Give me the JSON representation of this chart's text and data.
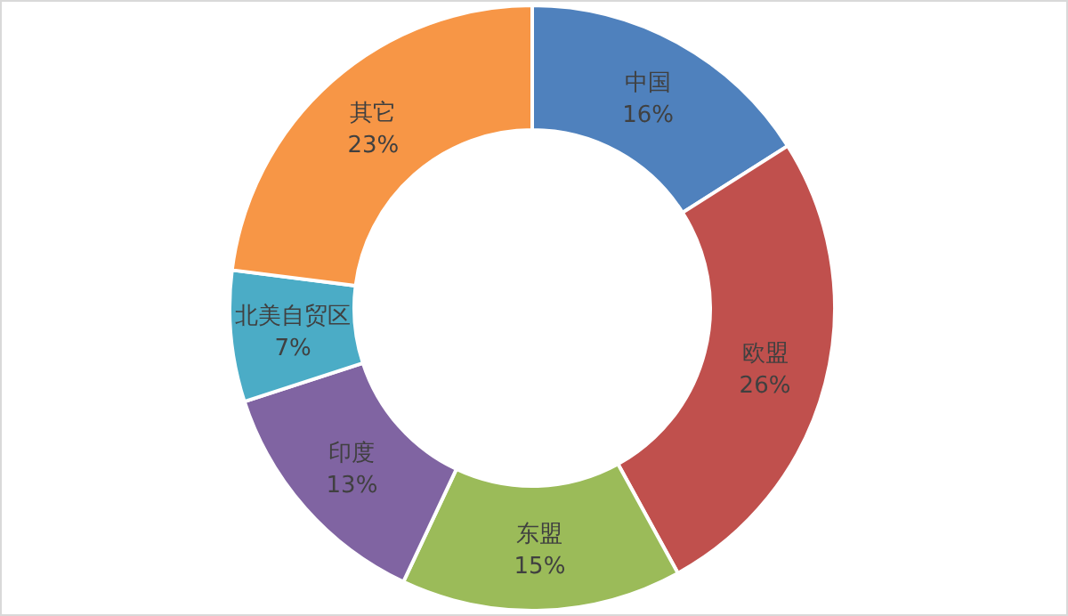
{
  "chart_data": {
    "type": "donut",
    "categories": [
      "中国",
      "欧盟",
      "东盟",
      "印度",
      "北美自贸区",
      "其它"
    ],
    "values": [
      16,
      26,
      15,
      13,
      7,
      23
    ],
    "value_labels": [
      "16%",
      "26%",
      "15%",
      "13%",
      "7%",
      "23%"
    ],
    "colors": [
      "#4f81bd",
      "#c0504d",
      "#9bbb59",
      "#8064a2",
      "#4bacc6",
      "#f79646"
    ]
  }
}
